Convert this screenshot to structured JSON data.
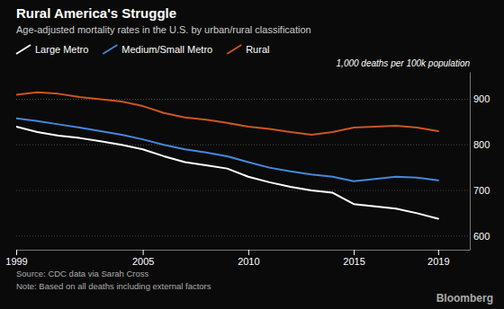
{
  "chart_data": {
    "type": "line",
    "title": "Rural America's Struggle",
    "subtitle": "Age-adjusted mortality rates in the U.S. by urban/rural classification",
    "y_label": "1,000 deaths per 100k population",
    "annotations": [
      "Source: CDC data via Sarah Cross",
      "Note: Based on all deaths including external factors",
      "Bloomberg"
    ],
    "x": [
      1999,
      2000,
      2001,
      2002,
      2003,
      2004,
      2005,
      2006,
      2007,
      2008,
      2009,
      2010,
      2011,
      2012,
      2013,
      2014,
      2015,
      2016,
      2017,
      2018,
      2019
    ],
    "series": [
      {
        "name": "Large Metro",
        "color": "#ffffff",
        "values": [
          840,
          828,
          820,
          815,
          808,
          800,
          790,
          775,
          762,
          755,
          748,
          730,
          718,
          708,
          700,
          695,
          670,
          665,
          660,
          650,
          638
        ]
      },
      {
        "name": "Medium/Small Metro",
        "color": "#4488dd",
        "values": [
          858,
          852,
          845,
          838,
          830,
          822,
          812,
          800,
          790,
          783,
          775,
          762,
          750,
          742,
          735,
          730,
          720,
          725,
          730,
          728,
          722
        ]
      },
      {
        "name": "Rural",
        "color": "#cc5522",
        "values": [
          910,
          915,
          912,
          905,
          900,
          895,
          885,
          870,
          860,
          855,
          848,
          840,
          835,
          828,
          822,
          828,
          838,
          840,
          842,
          838,
          830
        ]
      }
    ],
    "xlim": [
      1999,
      2020.5
    ],
    "xticks": [
      1999,
      2005,
      2010,
      2015,
      2019
    ],
    "ylim": [
      570,
      960
    ],
    "yticks": [
      600,
      700,
      800,
      900
    ],
    "grid": true,
    "legend": "top"
  }
}
